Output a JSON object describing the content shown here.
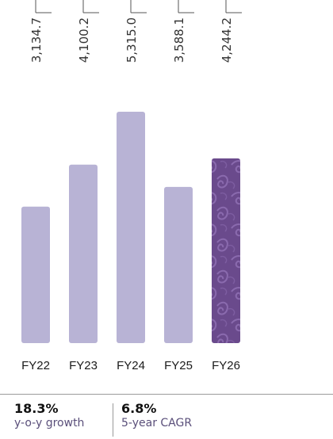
{
  "chart_data": {
    "type": "bar",
    "categories": [
      "FY22",
      "FY23",
      "FY24",
      "FY25",
      "FY26"
    ],
    "values": [
      3134.7,
      4100.2,
      5315.0,
      3588.1,
      4244.2
    ],
    "value_labels": [
      "3,134.7",
      "4,100.2",
      "5,315.0",
      "3,588.1",
      "4,244.2"
    ],
    "highlight_index": 4,
    "colors": {
      "bar": "#b8b3d5",
      "highlight": "#6a4a8c",
      "highlight_pattern": "#8a6aae"
    },
    "title": "",
    "xlabel": "",
    "ylabel": ""
  },
  "stats": [
    {
      "value": "18.3%",
      "label": "y-o-y growth"
    },
    {
      "value": "6.8%",
      "label": "5-year CAGR"
    }
  ]
}
